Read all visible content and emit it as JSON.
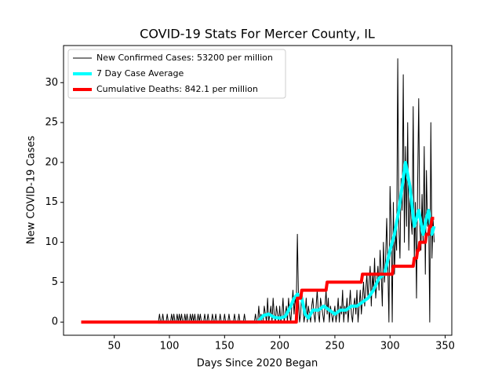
{
  "chart_data": {
    "type": "line",
    "title": "COVID-19 Stats For Mercer County, IL",
    "xlabel": "Days Since 2020 Began",
    "ylabel": "New COVID-19 Cases",
    "xlim": [
      4,
      356
    ],
    "ylim": [
      -1.65,
      34.65
    ],
    "xticks": [
      50,
      100,
      150,
      200,
      250,
      300,
      350
    ],
    "yticks": [
      0,
      5,
      10,
      15,
      20,
      25,
      30
    ],
    "legend": "upper left",
    "series": [
      {
        "name": "New Confirmed Cases: 53200 per million",
        "color": "#000000",
        "width": 1,
        "x": [
          90,
          91,
          92,
          93,
          94,
          95,
          96,
          97,
          98,
          99,
          100,
          101,
          102,
          103,
          104,
          105,
          106,
          107,
          108,
          109,
          110,
          111,
          112,
          113,
          114,
          115,
          116,
          117,
          118,
          119,
          120,
          121,
          122,
          123,
          124,
          125,
          126,
          127,
          128,
          129,
          130,
          131,
          132,
          133,
          134,
          135,
          136,
          137,
          138,
          139,
          140,
          141,
          142,
          143,
          144,
          145,
          146,
          147,
          148,
          149,
          150,
          151,
          152,
          153,
          154,
          155,
          156,
          157,
          158,
          159,
          160,
          161,
          162,
          163,
          164,
          165,
          166,
          167,
          168,
          169,
          170,
          171,
          172,
          173,
          174,
          175,
          176,
          177,
          178,
          179,
          180,
          181,
          182,
          183,
          184,
          185,
          186,
          187,
          188,
          189,
          190,
          191,
          192,
          193,
          194,
          195,
          196,
          197,
          198,
          199,
          200,
          201,
          202,
          203,
          204,
          205,
          206,
          207,
          208,
          209,
          210,
          211,
          212,
          213,
          214,
          215,
          216,
          217,
          218,
          219,
          220,
          221,
          222,
          223,
          224,
          225,
          226,
          227,
          228,
          229,
          230,
          231,
          232,
          233,
          234,
          235,
          236,
          237,
          238,
          239,
          240,
          241,
          242,
          243,
          244,
          245,
          246,
          247,
          248,
          249,
          250,
          251,
          252,
          253,
          254,
          255,
          256,
          257,
          258,
          259,
          260,
          261,
          262,
          263,
          264,
          265,
          266,
          267,
          268,
          269,
          270,
          271,
          272,
          273,
          274,
          275,
          276,
          277,
          278,
          279,
          280,
          281,
          282,
          283,
          284,
          285,
          286,
          287,
          288,
          289,
          290,
          291,
          292,
          293,
          294,
          295,
          296,
          297,
          298,
          299,
          300,
          301,
          302,
          303,
          304,
          305,
          306,
          307,
          308,
          309,
          310,
          311,
          312,
          313,
          314,
          315,
          316,
          317,
          318,
          319,
          320,
          321,
          322,
          323,
          324,
          325,
          326,
          327,
          328,
          329,
          330,
          331,
          332,
          333,
          334,
          335,
          336,
          337,
          338,
          339,
          340
        ],
        "values": [
          0,
          1,
          0,
          0,
          1,
          0,
          0,
          0,
          1,
          0,
          0,
          0,
          1,
          0,
          1,
          0,
          0,
          1,
          0,
          1,
          0,
          1,
          0,
          0,
          1,
          0,
          1,
          0,
          0,
          1,
          0,
          1,
          0,
          1,
          0,
          0,
          1,
          0,
          1,
          0,
          0,
          0,
          1,
          0,
          0,
          1,
          0,
          0,
          0,
          1,
          0,
          0,
          1,
          0,
          0,
          0,
          1,
          0,
          0,
          0,
          1,
          0,
          0,
          0,
          1,
          0,
          0,
          0,
          0,
          1,
          0,
          0,
          0,
          1,
          0,
          0,
          0,
          0,
          1,
          0,
          0,
          0,
          0,
          0,
          0,
          0,
          0,
          0,
          1,
          0,
          0,
          2,
          0,
          1,
          0,
          0,
          2,
          1,
          0,
          3,
          0,
          1,
          2,
          0,
          3,
          1,
          0,
          2,
          1,
          0,
          2,
          0,
          1,
          3,
          0,
          1,
          2,
          0,
          3,
          1,
          0,
          2,
          4,
          1,
          3,
          2,
          11,
          3,
          0,
          1,
          4,
          2,
          0,
          1,
          3,
          0,
          2,
          1,
          0,
          2,
          3,
          1,
          0,
          2,
          4,
          1,
          0,
          3,
          2,
          1,
          0,
          2,
          4,
          1,
          3,
          0,
          2,
          1,
          0,
          1,
          2,
          0,
          1,
          3,
          0,
          2,
          1,
          4,
          0,
          2,
          1,
          3,
          0,
          2,
          4,
          1,
          0,
          2,
          3,
          1,
          4,
          0,
          2,
          4,
          1,
          3,
          5,
          2,
          4,
          6,
          3,
          5,
          7,
          2,
          6,
          4,
          8,
          3,
          5,
          7,
          4,
          9,
          6,
          2,
          10,
          5,
          8,
          13,
          7,
          0,
          17,
          12,
          0,
          15,
          6,
          11,
          9,
          33,
          12,
          8,
          18,
          14,
          31,
          10,
          22,
          12,
          25,
          9,
          16,
          13,
          11,
          27,
          8,
          15,
          3,
          17,
          28,
          12,
          9,
          16,
          10,
          22,
          6,
          19,
          12,
          14,
          0,
          25,
          8,
          13,
          10
        ]
      },
      {
        "name": "7 Day Case Average",
        "color": "#00ffff",
        "width": 4,
        "x": [
          90,
          180,
          185,
          190,
          195,
          200,
          205,
          210,
          213,
          216,
          220,
          223,
          226,
          230,
          235,
          240,
          245,
          250,
          255,
          260,
          265,
          270,
          275,
          280,
          285,
          290,
          295,
          300,
          304,
          308,
          311,
          314,
          318,
          322,
          326,
          330,
          333,
          335,
          338,
          340
        ],
        "values": [
          0,
          0,
          0.8,
          1,
          0.6,
          0.5,
          0.7,
          2,
          3,
          3.5,
          3,
          1,
          0.5,
          1.5,
          1.5,
          2,
          1.5,
          1,
          1.5,
          1.5,
          2,
          2,
          2.5,
          3,
          4,
          5.5,
          6,
          9,
          11,
          14,
          17,
          20,
          17,
          12,
          14,
          11,
          13,
          14,
          11,
          12
        ]
      },
      {
        "name": "Cumulative Deaths: 842.1 per million",
        "color": "#ff0000",
        "width": 4,
        "x": [
          20,
          215,
          216,
          219,
          220,
          242,
          243,
          274,
          275,
          302,
          303,
          321,
          322,
          324,
          325,
          326,
          327,
          332,
          333,
          335,
          336,
          337,
          338,
          340
        ],
        "values": [
          0,
          0,
          3,
          3,
          4,
          4,
          5,
          5,
          6,
          6,
          7,
          7,
          8,
          8,
          9,
          9,
          10,
          10,
          11,
          11,
          12,
          12,
          13,
          13
        ]
      }
    ]
  }
}
